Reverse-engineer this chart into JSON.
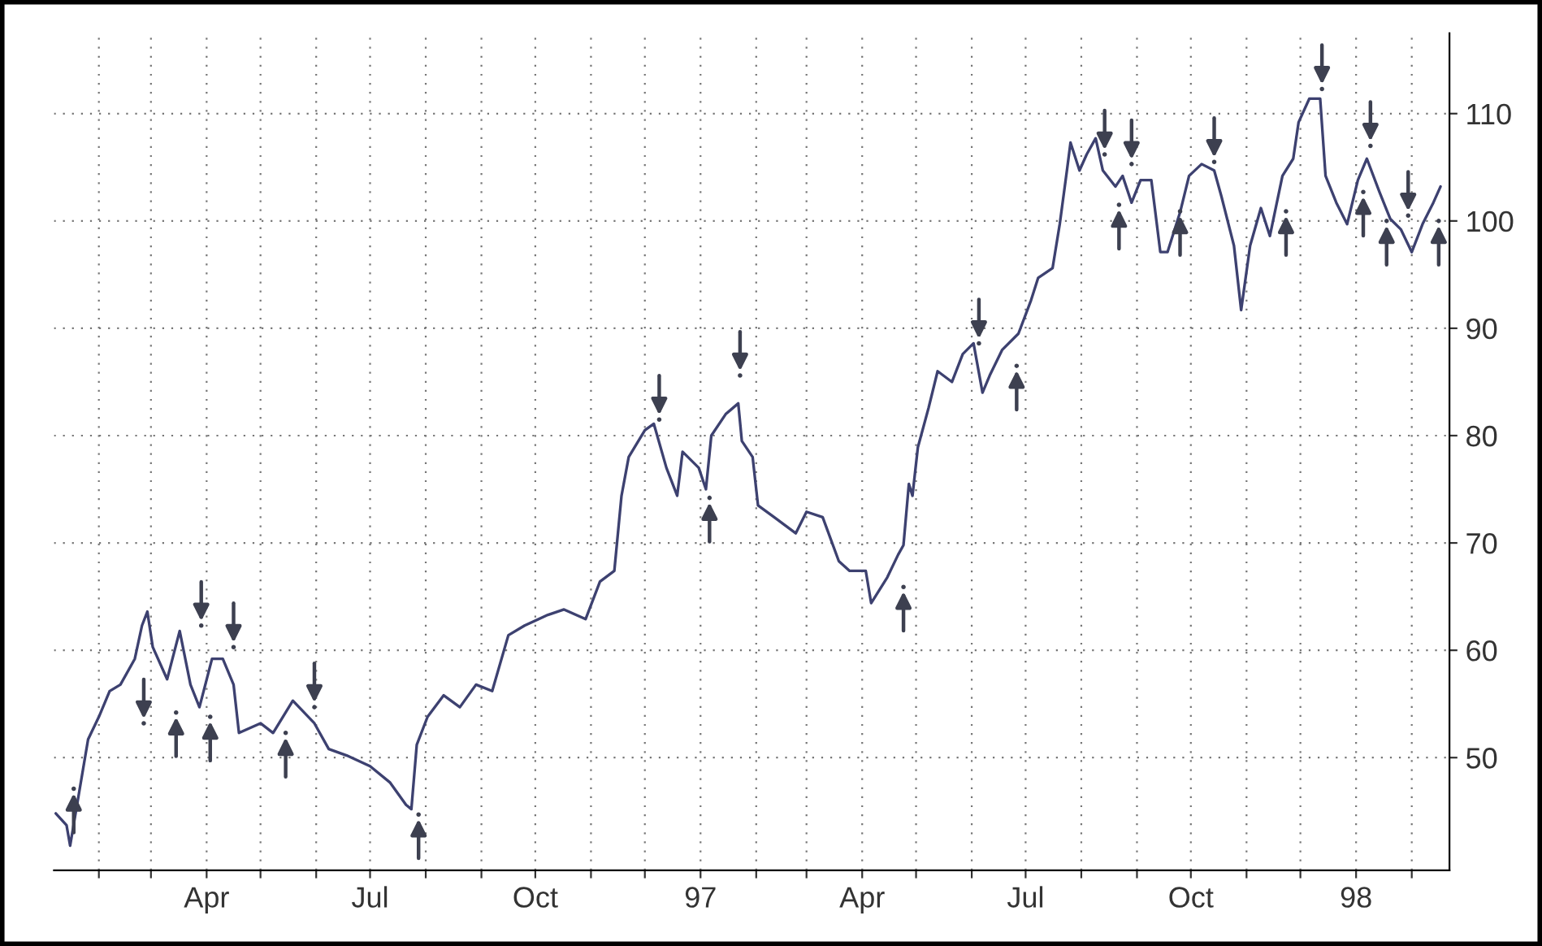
{
  "chart_data": {
    "type": "line",
    "xlim": [
      "1996-01-07",
      "1998-02-22"
    ],
    "ylim": [
      39.5,
      117.5
    ],
    "yticks": [
      50,
      60,
      70,
      80,
      90,
      100,
      110
    ],
    "xticks": [
      {
        "value": "1996-02-01",
        "label": null
      },
      {
        "value": "1996-03-01",
        "label": null
      },
      {
        "value": "1996-04-01",
        "label": "Apr"
      },
      {
        "value": "1996-05-01",
        "label": null
      },
      {
        "value": "1996-06-01",
        "label": null
      },
      {
        "value": "1996-07-01",
        "label": "Jul"
      },
      {
        "value": "1996-08-01",
        "label": null
      },
      {
        "value": "1996-09-01",
        "label": null
      },
      {
        "value": "1996-10-01",
        "label": "Oct"
      },
      {
        "value": "1996-11-01",
        "label": null
      },
      {
        "value": "1996-12-01",
        "label": null
      },
      {
        "value": "1997-01-01",
        "label": "97"
      },
      {
        "value": "1997-02-01",
        "label": null
      },
      {
        "value": "1997-03-01",
        "label": null
      },
      {
        "value": "1997-04-01",
        "label": "Apr"
      },
      {
        "value": "1997-05-01",
        "label": null
      },
      {
        "value": "1997-06-01",
        "label": null
      },
      {
        "value": "1997-07-01",
        "label": "Jul"
      },
      {
        "value": "1997-08-01",
        "label": null
      },
      {
        "value": "1997-09-01",
        "label": null
      },
      {
        "value": "1997-10-01",
        "label": "Oct"
      },
      {
        "value": "1997-11-01",
        "label": null
      },
      {
        "value": "1997-12-01",
        "label": null
      },
      {
        "value": "1998-01-01",
        "label": "98"
      },
      {
        "value": "1998-02-01",
        "label": null
      }
    ],
    "grid": true,
    "line_style": "solid",
    "series": [
      {
        "color": "#3d4170",
        "x": [
          "1996-01-08",
          "1996-01-14",
          "1996-01-16",
          "1996-01-26",
          "1996-02-01",
          "1996-02-07",
          "1996-02-13",
          "1996-02-21",
          "1996-02-25",
          "1996-02-28",
          "1996-03-02",
          "1996-03-10",
          "1996-03-17",
          "1996-03-23",
          "1996-03-28",
          "1996-04-04",
          "1996-04-10",
          "1996-04-16",
          "1996-04-19",
          "1996-05-01",
          "1996-05-08",
          "1996-05-19",
          "1996-05-31",
          "1996-06-08",
          "1996-06-18",
          "1996-07-01",
          "1996-07-12",
          "1996-07-21",
          "1996-07-24",
          "1996-07-27",
          "1996-08-02",
          "1996-08-11",
          "1996-08-20",
          "1996-08-29",
          "1996-09-07",
          "1996-09-16",
          "1996-09-25",
          "1996-10-08",
          "1996-10-17",
          "1996-10-29",
          "1996-11-06",
          "1996-11-14",
          "1996-11-18",
          "1996-11-22",
          "1996-12-01",
          "1996-12-06",
          "1996-12-13",
          "1996-12-19",
          "1996-12-22",
          "1996-12-31",
          "1997-01-04",
          "1997-01-07",
          "1997-01-15",
          "1997-01-22",
          "1997-01-24",
          "1997-01-30",
          "1997-02-02",
          "1997-02-11",
          "1997-02-23",
          "1997-03-01",
          "1997-03-10",
          "1997-03-19",
          "1997-03-25",
          "1997-04-03",
          "1997-04-06",
          "1997-04-15",
          "1997-04-21",
          "1997-04-24",
          "1997-04-27",
          "1997-04-29",
          "1997-05-02",
          "1997-05-08",
          "1997-05-13",
          "1997-05-21",
          "1997-05-27",
          "1997-06-02",
          "1997-06-07",
          "1997-06-11",
          "1997-06-18",
          "1997-06-27",
          "1997-07-04",
          "1997-07-08",
          "1997-07-16",
          "1997-07-20",
          "1997-07-24",
          "1997-07-26",
          "1997-07-31",
          "1997-08-04",
          "1997-08-09",
          "1997-08-13",
          "1997-08-20",
          "1997-08-24",
          "1997-08-29",
          "1997-09-03",
          "1997-09-09",
          "1997-09-14",
          "1997-09-18",
          "1997-09-25",
          "1997-09-30",
          "1997-10-07",
          "1997-10-14",
          "1997-10-18",
          "1997-10-25",
          "1997-10-29",
          "1997-11-03",
          "1997-11-09",
          "1997-11-14",
          "1997-11-21",
          "1997-11-27",
          "1997-11-30",
          "1997-12-06",
          "1997-12-12",
          "1997-12-15",
          "1997-12-21",
          "1997-12-27",
          "1998-01-02",
          "1998-01-07",
          "1998-01-14",
          "1998-01-20",
          "1998-01-26",
          "1998-02-01",
          "1998-02-07",
          "1998-02-13",
          "1998-02-17"
        ],
        "values": [
          44.8,
          43.7,
          41.8,
          51.7,
          53.8,
          56.2,
          56.8,
          59.2,
          62.3,
          63.6,
          60.3,
          57.3,
          61.8,
          56.8,
          54.7,
          59.2,
          59.2,
          56.8,
          52.3,
          53.2,
          52.3,
          55.3,
          53.2,
          50.8,
          50.2,
          49.2,
          47.7,
          45.6,
          45.2,
          51.2,
          53.8,
          55.8,
          54.7,
          56.8,
          56.2,
          61.4,
          62.3,
          63.3,
          63.8,
          62.9,
          66.4,
          67.4,
          74.4,
          78,
          80.5,
          81.1,
          77,
          74.4,
          78.5,
          77,
          75,
          80,
          82,
          83,
          79.5,
          78,
          73.5,
          72.4,
          70.9,
          72.9,
          72.4,
          68.3,
          67.4,
          67.4,
          64.4,
          66.8,
          68.9,
          69.8,
          75.5,
          74.4,
          78.9,
          82.6,
          86,
          85,
          87.6,
          88.6,
          84,
          85.6,
          88,
          89.5,
          92.6,
          94.7,
          95.6,
          99.7,
          104.7,
          107.3,
          104.7,
          106.2,
          107.7,
          104.7,
          103.2,
          104.2,
          101.7,
          103.8,
          103.8,
          97.1,
          97.1,
          100.8,
          104.2,
          105.3,
          104.7,
          102.3,
          97.7,
          91.7,
          97.7,
          101.2,
          98.6,
          104.2,
          105.8,
          109.2,
          111.4,
          111.4,
          104.2,
          101.7,
          99.7,
          103.8,
          105.8,
          102.7,
          100.2,
          99.2,
          97.1,
          99.7,
          101.7,
          103.2
        ]
      },
      {
        "type": "scatter",
        "color": "#3d4050",
        "x": [
          "1996-02-26",
          "1996-03-29",
          "1996-04-16",
          "1996-05-31",
          "1996-12-09",
          "1997-01-23",
          "1997-06-05",
          "1997-08-14",
          "1997-08-29",
          "1997-10-14",
          "1997-12-13",
          "1998-01-09",
          "1998-01-30"
        ],
        "values": [
          53.2,
          62.3,
          60.3,
          54.7,
          81.5,
          85.6,
          88.6,
          106.2,
          105.3,
          105.5,
          112.3,
          107,
          100.5
        ]
      },
      {
        "type": "scatter",
        "color": "#3d4050",
        "x": [
          "1996-01-18",
          "1996-03-15",
          "1996-04-03",
          "1996-05-15",
          "1996-07-28",
          "1997-01-06",
          "1997-04-24",
          "1997-06-26",
          "1997-08-22",
          "1997-09-25",
          "1997-11-23",
          "1998-01-05",
          "1998-01-18",
          "1998-02-16"
        ],
        "values": [
          47.1,
          54.2,
          53.8,
          52.3,
          44.7,
          74.2,
          65.9,
          86.5,
          101.5,
          100.9,
          100.9,
          102.7,
          100,
          100
        ]
      }
    ]
  }
}
